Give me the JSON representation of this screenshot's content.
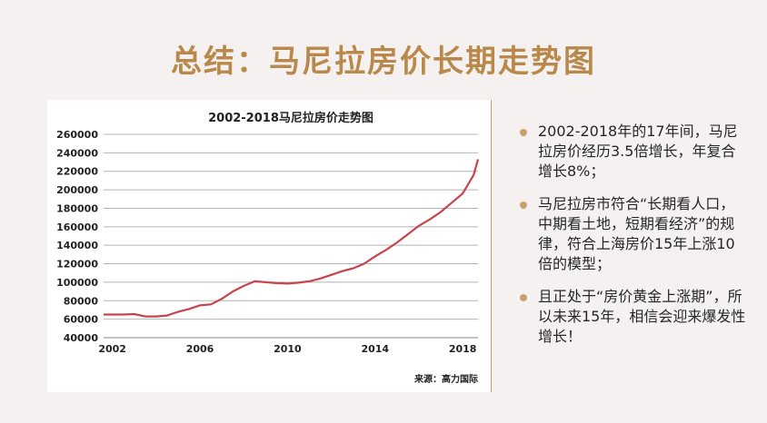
{
  "page": {
    "title": "总结：马尼拉房价长期走势图"
  },
  "colors": {
    "title": "#b8894a",
    "line": "#c8434b",
    "bullet": "#c5a26b",
    "background": "#f6f1f1"
  },
  "bullets": [
    "2002-2018年的17年间，马尼拉房价经历3.5倍增长，年复合增长8%；",
    "马尼拉房市符合“长期看人口，中期看土地，短期看经济”的规律，符合上海房价15年上涨10倍的模型；",
    "且正处于“房价黄金上涨期”，所以未来15年，相信会迎来爆发性增长！"
  ],
  "chart_data": {
    "type": "line",
    "title": "2002-2018马尼拉房价走势图",
    "xlabel": "",
    "ylabel": "",
    "source": "来源：高力国际",
    "xlim": [
      2001.6,
      2018.7
    ],
    "ylim": [
      40000,
      260000
    ],
    "x_ticks": [
      2002,
      2006,
      2010,
      2014,
      2018
    ],
    "y_ticks": [
      40000,
      60000,
      80000,
      100000,
      120000,
      140000,
      160000,
      180000,
      200000,
      220000,
      240000,
      260000
    ],
    "grid": true,
    "series": [
      {
        "name": "",
        "color": "#c8434b",
        "x": [
          2001.6,
          2002.5,
          2003.0,
          2003.5,
          2004.0,
          2004.5,
          2005.0,
          2005.5,
          2006.0,
          2006.5,
          2007.0,
          2007.5,
          2008.0,
          2008.5,
          2009.0,
          2009.5,
          2010.0,
          2010.5,
          2011.0,
          2011.5,
          2012.0,
          2012.5,
          2013.0,
          2013.5,
          2014.0,
          2014.5,
          2015.0,
          2015.5,
          2016.0,
          2016.5,
          2017.0,
          2017.5,
          2018.0,
          2018.5,
          2018.7
        ],
        "y": [
          65000,
          65000,
          65500,
          63000,
          63000,
          64000,
          68000,
          71000,
          75000,
          76000,
          82000,
          90000,
          96000,
          101000,
          100000,
          99000,
          98500,
          99500,
          101000,
          104000,
          108000,
          112000,
          115000,
          120000,
          128000,
          135000,
          143000,
          152000,
          161000,
          168000,
          176000,
          186000,
          196000,
          216000,
          233000
        ]
      }
    ]
  }
}
